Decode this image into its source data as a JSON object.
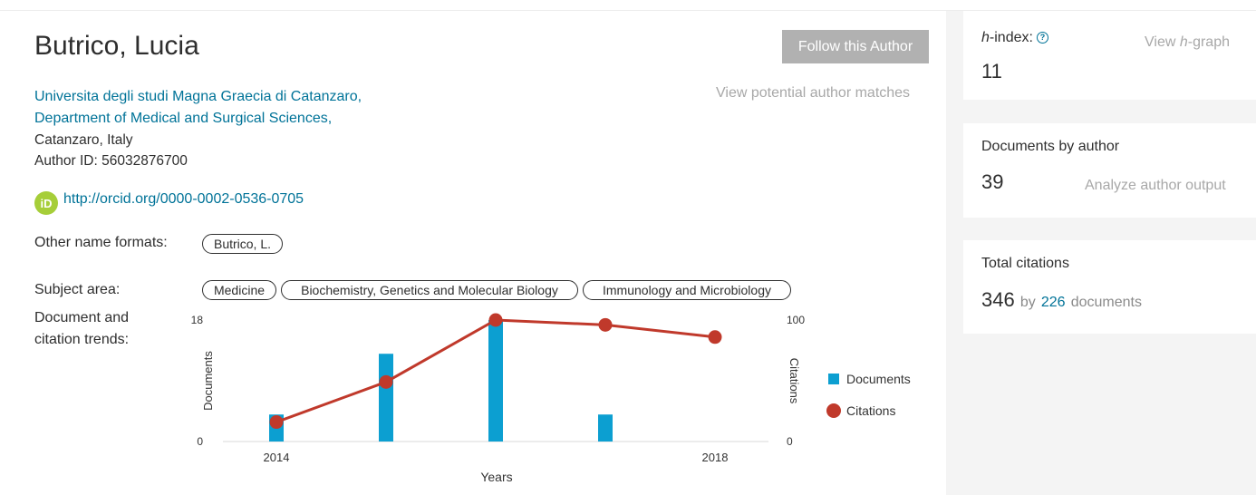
{
  "author": {
    "name": "Butrico, Lucia",
    "follow_label": "Follow this Author",
    "potential_matches": "View potential author matches",
    "affiliation_line1": "Universita degli studi Magna Graecia di Catanzaro,",
    "affiliation_line2": "Department of Medical and Surgical Sciences,",
    "location": "Catanzaro, Italy",
    "author_id": "Author ID: 56032876700",
    "orcid_icon": "orcid-icon",
    "orcid_icon_text": "iD",
    "orcid_url": "http://orcid.org/0000-0002-0536-0705",
    "other_names_label": "Other name formats:",
    "other_names": [
      "Butrico, L."
    ],
    "subject_label": "Subject area:",
    "subjects": [
      "Medicine",
      "Biochemistry, Genetics and Molecular Biology",
      "Immunology and Microbiology"
    ],
    "trends_label_1": "Document and",
    "trends_label_2": "citation trends:"
  },
  "chart_data": {
    "type": "bar",
    "x": [
      2014,
      2015,
      2016,
      2017,
      2018
    ],
    "x_tick_labels": [
      "2014",
      "",
      "",
      "",
      "2018"
    ],
    "xlabel": "Years",
    "series": [
      {
        "name": "Documents",
        "kind": "bar",
        "axis": "left",
        "color": "#0c9fd1",
        "values": [
          4,
          13,
          18,
          4,
          0
        ]
      },
      {
        "name": "Citations",
        "kind": "line",
        "axis": "right",
        "color": "#c0392b",
        "values": [
          16,
          49,
          100,
          96,
          86
        ]
      }
    ],
    "ylabel_left": "Documents",
    "ylabel_right": "Citations",
    "ylim_left": [
      0,
      18
    ],
    "ylim_right": [
      0,
      100
    ],
    "left_tick_labels": [
      "0",
      "18"
    ],
    "right_tick_labels": [
      "0",
      "100"
    ],
    "legend": [
      "Documents",
      "Citations"
    ],
    "legend_position": "right",
    "grid": false
  },
  "metrics": {
    "h_index_label_prefix": "h",
    "h_index_label_suffix": "-index:",
    "help_icon": "help-icon",
    "h_index_value": "11",
    "h_graph_prefix": "View ",
    "h_graph_italic": "h",
    "h_graph_suffix": "-graph",
    "documents_label": "Documents by author",
    "documents_value": "39",
    "analyze_label": "Analyze author output",
    "citations_label": "Total citations",
    "citations_value": "346",
    "citations_by": "by",
    "citing_docs": "226",
    "citations_docs_word": "documents"
  }
}
